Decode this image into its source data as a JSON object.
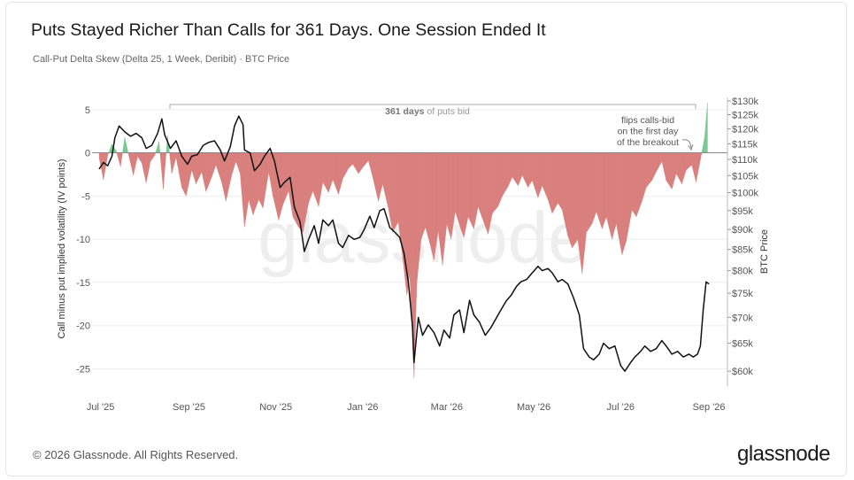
{
  "header": {
    "title": "Puts Stayed Richer Than Calls for 361 Days. One Session Ended It",
    "subtitle": "Call-Put Delta Skew (Delta 25, 1 Week, Deribit) · BTC Price"
  },
  "footer": {
    "copyright": "© 2026 Glassnode. All Rights Reserved.",
    "brand": "glassnode",
    "watermark": "glassnode"
  },
  "chart_data": {
    "type": "area",
    "title": "Puts Stayed Richer Than Calls for 361 Days. One Session Ended It",
    "subtitle": "Call-Put Delta Skew (Delta 25, 1 Week, Deribit) · BTC Price",
    "x_tick_labels": [
      "Jul '25",
      "Sep '25",
      "Nov '25",
      "Jan '26",
      "Mar '26",
      "May '26",
      "Jul '26",
      "Sep '26"
    ],
    "x_ticks": [
      "2025-07-01",
      "2025-09-01",
      "2025-11-01",
      "2026-01-01",
      "2026-03-01",
      "2026-05-01",
      "2026-07-01",
      "2026-09-01"
    ],
    "xlim": [
      "2025-06-25",
      "2026-09-14"
    ],
    "left_axis": {
      "label": "Call minus put implied volatility (IV points)",
      "ylim": [
        -27,
        6
      ],
      "ticks": [
        5,
        0,
        -5,
        -10,
        -15,
        -20,
        -25
      ]
    },
    "right_axis": {
      "label": "BTC Price",
      "scale": "log",
      "ylim": [
        57500,
        130000
      ],
      "ticks": [
        130000,
        125000,
        120000,
        115000,
        110000,
        105000,
        100000,
        95000,
        90000,
        85000,
        80000,
        75000,
        70000,
        65000,
        60000
      ],
      "tick_labels": [
        "$130k",
        "$125k",
        "$120k",
        "$115k",
        "$110k",
        "$105k",
        "$100k",
        "$95k",
        "$90k",
        "$85k",
        "$80k",
        "$75k",
        "$70k",
        "$65k",
        "$60k"
      ]
    },
    "grid": true,
    "annotations": [
      {
        "text_bold": "361 days",
        "text": "of puts bid"
      },
      {
        "lines": [
          "flips calls-bid",
          "on the first day",
          "of the breakout"
        ]
      }
    ],
    "colors": {
      "positive": "#7cc796",
      "negative": "#d9807e",
      "price": "#111111"
    },
    "series": [
      {
        "type": "area",
        "axis": "left",
        "points": [
          [
            "2025-06-30",
            -0.6
          ],
          [
            "2025-07-03",
            -3.1
          ],
          [
            "2025-07-06",
            -0.3
          ],
          [
            "2025-07-09",
            1.0
          ],
          [
            "2025-07-12",
            0.2
          ],
          [
            "2025-07-15",
            -1.6
          ],
          [
            "2025-07-18",
            1.8
          ],
          [
            "2025-07-21",
            -0.5
          ],
          [
            "2025-07-24",
            -2.6
          ],
          [
            "2025-07-27",
            -0.4
          ],
          [
            "2025-07-30",
            -1.2
          ],
          [
            "2025-08-02",
            -3.5
          ],
          [
            "2025-08-05",
            -1.0
          ],
          [
            "2025-08-08",
            -0.3
          ],
          [
            "2025-08-11",
            1.3
          ],
          [
            "2025-08-14",
            -4.2
          ],
          [
            "2025-08-17",
            2.0
          ],
          [
            "2025-08-20",
            -2.4
          ],
          [
            "2025-08-23",
            -0.5
          ],
          [
            "2025-08-27",
            -4.0
          ],
          [
            "2025-08-30",
            -5.0
          ],
          [
            "2025-09-03",
            -2.0
          ],
          [
            "2025-09-06",
            -3.6
          ],
          [
            "2025-09-10",
            -2.2
          ],
          [
            "2025-09-13",
            -4.5
          ],
          [
            "2025-09-17",
            -2.8
          ],
          [
            "2025-09-20",
            -1.4
          ],
          [
            "2025-09-24",
            -3.4
          ],
          [
            "2025-09-27",
            -5.6
          ],
          [
            "2025-10-01",
            -2.6
          ],
          [
            "2025-10-04",
            -1.0
          ],
          [
            "2025-10-07",
            -2.4
          ],
          [
            "2025-10-10",
            -8.6
          ],
          [
            "2025-10-13",
            -5.4
          ],
          [
            "2025-10-16",
            -7.2
          ],
          [
            "2025-10-20",
            -5.4
          ],
          [
            "2025-10-23",
            -6.4
          ],
          [
            "2025-10-27",
            -2.2
          ],
          [
            "2025-10-30",
            -5.0
          ],
          [
            "2025-11-03",
            -7.8
          ],
          [
            "2025-11-06",
            -6.0
          ],
          [
            "2025-11-10",
            -4.4
          ],
          [
            "2025-11-13",
            -7.4
          ],
          [
            "2025-11-17",
            -8.6
          ],
          [
            "2025-11-20",
            -9.2
          ],
          [
            "2025-11-24",
            -5.8
          ],
          [
            "2025-11-27",
            -4.4
          ],
          [
            "2025-12-01",
            -6.2
          ],
          [
            "2025-12-04",
            -3.4
          ],
          [
            "2025-12-08",
            -4.6
          ],
          [
            "2025-12-11",
            -3.1
          ],
          [
            "2025-12-15",
            -4.8
          ],
          [
            "2025-12-18",
            -3.0
          ],
          [
            "2025-12-22",
            -1.8
          ],
          [
            "2025-12-25",
            -1.3
          ],
          [
            "2025-12-29",
            -2.4
          ],
          [
            "2026-01-01",
            -1.7
          ],
          [
            "2026-01-05",
            -0.9
          ],
          [
            "2026-01-08",
            -2.8
          ],
          [
            "2026-01-12",
            -5.6
          ],
          [
            "2026-01-15",
            -3.6
          ],
          [
            "2026-01-19",
            -6.4
          ],
          [
            "2026-01-22",
            -9.2
          ],
          [
            "2026-01-26",
            -8.0
          ],
          [
            "2026-01-29",
            -12.0
          ],
          [
            "2026-02-01",
            -16.5
          ],
          [
            "2026-02-03",
            -14.0
          ],
          [
            "2026-02-06",
            -26.0
          ],
          [
            "2026-02-08",
            -15.0
          ],
          [
            "2026-02-11",
            -10.0
          ],
          [
            "2026-02-14",
            -8.6
          ],
          [
            "2026-02-17",
            -10.4
          ],
          [
            "2026-02-20",
            -12.4
          ],
          [
            "2026-02-23",
            -9.0
          ],
          [
            "2026-02-26",
            -13.0
          ],
          [
            "2026-03-01",
            -8.2
          ],
          [
            "2026-03-04",
            -10.0
          ],
          [
            "2026-03-07",
            -6.8
          ],
          [
            "2026-03-10",
            -8.4
          ],
          [
            "2026-03-13",
            -9.8
          ],
          [
            "2026-03-16",
            -7.4
          ],
          [
            "2026-03-20",
            -8.8
          ],
          [
            "2026-03-23",
            -6.2
          ],
          [
            "2026-03-26",
            -7.6
          ],
          [
            "2026-03-30",
            -9.4
          ],
          [
            "2026-04-02",
            -7.0
          ],
          [
            "2026-04-06",
            -6.2
          ],
          [
            "2026-04-09",
            -5.0
          ],
          [
            "2026-04-13",
            -3.9
          ],
          [
            "2026-04-16",
            -2.8
          ],
          [
            "2026-04-20",
            -3.8
          ],
          [
            "2026-04-23",
            -2.6
          ],
          [
            "2026-04-27",
            -4.0
          ],
          [
            "2026-04-30",
            -3.2
          ],
          [
            "2026-05-04",
            -5.2
          ],
          [
            "2026-05-07",
            -3.8
          ],
          [
            "2026-05-11",
            -5.4
          ],
          [
            "2026-05-14",
            -7.0
          ],
          [
            "2026-05-18",
            -5.8
          ],
          [
            "2026-05-21",
            -6.6
          ],
          [
            "2026-05-25",
            -9.6
          ],
          [
            "2026-05-28",
            -11.0
          ],
          [
            "2026-06-01",
            -10.0
          ],
          [
            "2026-06-04",
            -14.0
          ],
          [
            "2026-06-07",
            -9.2
          ],
          [
            "2026-06-11",
            -8.2
          ],
          [
            "2026-06-14",
            -6.8
          ],
          [
            "2026-06-18",
            -8.8
          ],
          [
            "2026-06-21",
            -7.4
          ],
          [
            "2026-06-25",
            -10.0
          ],
          [
            "2026-06-28",
            -8.2
          ],
          [
            "2026-07-02",
            -11.8
          ],
          [
            "2026-07-05",
            -10.2
          ],
          [
            "2026-07-09",
            -6.6
          ],
          [
            "2026-07-12",
            -7.4
          ],
          [
            "2026-07-16",
            -5.6
          ],
          [
            "2026-07-19",
            -4.0
          ],
          [
            "2026-07-23",
            -3.2
          ],
          [
            "2026-07-26",
            -2.2
          ],
          [
            "2026-07-30",
            -1.0
          ],
          [
            "2026-08-02",
            -3.2
          ],
          [
            "2026-08-06",
            -4.2
          ],
          [
            "2026-08-09",
            -2.4
          ],
          [
            "2026-08-13",
            -3.6
          ],
          [
            "2026-08-16",
            -2.0
          ],
          [
            "2026-08-20",
            -1.4
          ],
          [
            "2026-08-23",
            -3.4
          ],
          [
            "2026-08-26",
            -0.8
          ],
          [
            "2026-08-29",
            1.8
          ],
          [
            "2026-08-31",
            5.8
          ]
        ]
      },
      {
        "type": "line",
        "axis": "right",
        "points": [
          [
            "2025-06-30",
            107000
          ],
          [
            "2025-07-03",
            109000
          ],
          [
            "2025-07-06",
            108000
          ],
          [
            "2025-07-09",
            111000
          ],
          [
            "2025-07-11",
            117000
          ],
          [
            "2025-07-14",
            121000
          ],
          [
            "2025-07-18",
            119000
          ],
          [
            "2025-07-22",
            117500
          ],
          [
            "2025-07-26",
            118500
          ],
          [
            "2025-07-30",
            117000
          ],
          [
            "2025-08-02",
            113500
          ],
          [
            "2025-08-06",
            114500
          ],
          [
            "2025-08-10",
            118500
          ],
          [
            "2025-08-13",
            123500
          ],
          [
            "2025-08-15",
            118000
          ],
          [
            "2025-08-19",
            113500
          ],
          [
            "2025-08-23",
            116000
          ],
          [
            "2025-08-27",
            111000
          ],
          [
            "2025-08-31",
            108500
          ],
          [
            "2025-09-03",
            111000
          ],
          [
            "2025-09-07",
            111500
          ],
          [
            "2025-09-11",
            114500
          ],
          [
            "2025-09-15",
            115500
          ],
          [
            "2025-09-19",
            116000
          ],
          [
            "2025-09-23",
            113000
          ],
          [
            "2025-09-26",
            109500
          ],
          [
            "2025-09-30",
            114000
          ],
          [
            "2025-10-03",
            121000
          ],
          [
            "2025-10-06",
            124500
          ],
          [
            "2025-10-09",
            121500
          ],
          [
            "2025-10-10",
            113000
          ],
          [
            "2025-10-14",
            112000
          ],
          [
            "2025-10-17",
            106500
          ],
          [
            "2025-10-21",
            108500
          ],
          [
            "2025-10-24",
            111000
          ],
          [
            "2025-10-28",
            113500
          ],
          [
            "2025-10-31",
            109500
          ],
          [
            "2025-11-04",
            101500
          ],
          [
            "2025-11-07",
            103000
          ],
          [
            "2025-11-11",
            104500
          ],
          [
            "2025-11-14",
            96000
          ],
          [
            "2025-11-18",
            92000
          ],
          [
            "2025-11-21",
            84500
          ],
          [
            "2025-11-24",
            87500
          ],
          [
            "2025-11-28",
            91000
          ],
          [
            "2025-12-01",
            86500
          ],
          [
            "2025-12-04",
            92500
          ],
          [
            "2025-12-08",
            91000
          ],
          [
            "2025-12-11",
            92500
          ],
          [
            "2025-12-15",
            86500
          ],
          [
            "2025-12-18",
            85500
          ],
          [
            "2025-12-22",
            88500
          ],
          [
            "2025-12-26",
            87500
          ],
          [
            "2025-12-30",
            88000
          ],
          [
            "2026-01-02",
            90000
          ],
          [
            "2026-01-06",
            93500
          ],
          [
            "2026-01-09",
            90500
          ],
          [
            "2026-01-13",
            95000
          ],
          [
            "2026-01-16",
            95500
          ],
          [
            "2026-01-20",
            90500
          ],
          [
            "2026-01-23",
            89500
          ],
          [
            "2026-01-27",
            88000
          ],
          [
            "2026-01-30",
            84000
          ],
          [
            "2026-02-02",
            77500
          ],
          [
            "2026-02-05",
            68000
          ],
          [
            "2026-02-06",
            61500
          ],
          [
            "2026-02-09",
            70000
          ],
          [
            "2026-02-12",
            66500
          ],
          [
            "2026-02-16",
            68500
          ],
          [
            "2026-02-20",
            67000
          ],
          [
            "2026-02-24",
            64500
          ],
          [
            "2026-02-27",
            67500
          ],
          [
            "2026-03-03",
            66000
          ],
          [
            "2026-03-06",
            70500
          ],
          [
            "2026-03-10",
            71500
          ],
          [
            "2026-03-13",
            67000
          ],
          [
            "2026-03-17",
            73500
          ],
          [
            "2026-03-20",
            70500
          ],
          [
            "2026-03-24",
            69000
          ],
          [
            "2026-03-28",
            66500
          ],
          [
            "2026-04-01",
            68000
          ],
          [
            "2026-04-04",
            69500
          ],
          [
            "2026-04-08",
            71500
          ],
          [
            "2026-04-12",
            73500
          ],
          [
            "2026-04-15",
            74500
          ],
          [
            "2026-04-19",
            76500
          ],
          [
            "2026-04-22",
            77500
          ],
          [
            "2026-04-26",
            78000
          ],
          [
            "2026-04-30",
            79500
          ],
          [
            "2026-05-04",
            81000
          ],
          [
            "2026-05-07",
            80000
          ],
          [
            "2026-05-11",
            80500
          ],
          [
            "2026-05-14",
            79500
          ],
          [
            "2026-05-18",
            77500
          ],
          [
            "2026-05-21",
            78000
          ],
          [
            "2026-05-25",
            77000
          ],
          [
            "2026-05-29",
            74000
          ],
          [
            "2026-06-02",
            70500
          ],
          [
            "2026-06-05",
            64000
          ],
          [
            "2026-06-09",
            62500
          ],
          [
            "2026-06-12",
            62000
          ],
          [
            "2026-06-16",
            63000
          ],
          [
            "2026-06-19",
            65000
          ],
          [
            "2026-06-23",
            64000
          ],
          [
            "2026-06-27",
            64500
          ],
          [
            "2026-07-01",
            61000
          ],
          [
            "2026-07-04",
            60000
          ],
          [
            "2026-07-08",
            61500
          ],
          [
            "2026-07-11",
            62500
          ],
          [
            "2026-07-15",
            63500
          ],
          [
            "2026-07-18",
            64500
          ],
          [
            "2026-07-22",
            63500
          ],
          [
            "2026-07-26",
            64000
          ],
          [
            "2026-07-30",
            65500
          ],
          [
            "2026-08-02",
            64500
          ],
          [
            "2026-08-06",
            63000
          ],
          [
            "2026-08-10",
            63500
          ],
          [
            "2026-08-14",
            62500
          ],
          [
            "2026-08-18",
            63000
          ],
          [
            "2026-08-21",
            62500
          ],
          [
            "2026-08-24",
            63000
          ],
          [
            "2026-08-26",
            64500
          ],
          [
            "2026-08-28",
            71500
          ],
          [
            "2026-08-30",
            77500
          ],
          [
            "2026-09-01",
            77000
          ]
        ]
      }
    ]
  }
}
